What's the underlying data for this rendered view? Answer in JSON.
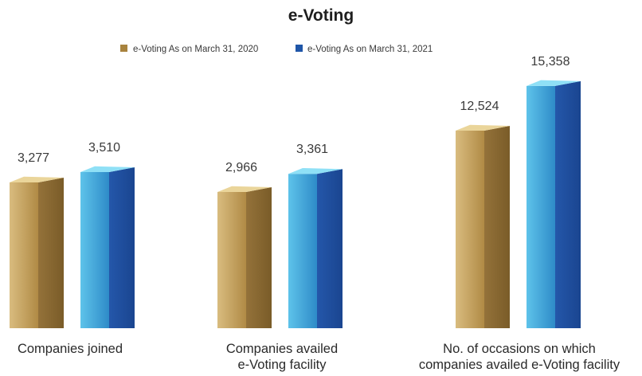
{
  "chart_data": {
    "type": "bar",
    "title": "e-Voting",
    "categories": [
      [
        "Companies joined"
      ],
      [
        "Companies availed",
        "e-Voting facility"
      ],
      [
        "No. of occasions on which",
        "companies availed e-Voting facility"
      ]
    ],
    "series": [
      {
        "name": "e-Voting As on March 31, 2020",
        "values": [
          3277,
          2966,
          12524
        ],
        "labels": [
          "3,277",
          "2,966",
          "12,524"
        ]
      },
      {
        "name": "e-Voting As on March 31, 2021",
        "values": [
          3510,
          3361,
          15358
        ],
        "labels": [
          "3,510",
          "3,361",
          "15,358"
        ]
      }
    ],
    "legend": "top-center",
    "grid": false,
    "colors": {
      "series_2020": {
        "front": "#b8924a",
        "front_light": "#dcc084",
        "side": "#8a6a2e",
        "top": "#ead59a"
      },
      "series_2021": {
        "front": "#2f8fcd",
        "front_light": "#5ec3ea",
        "side": "#1f4fa0",
        "top": "#8fe0f6"
      }
    }
  }
}
